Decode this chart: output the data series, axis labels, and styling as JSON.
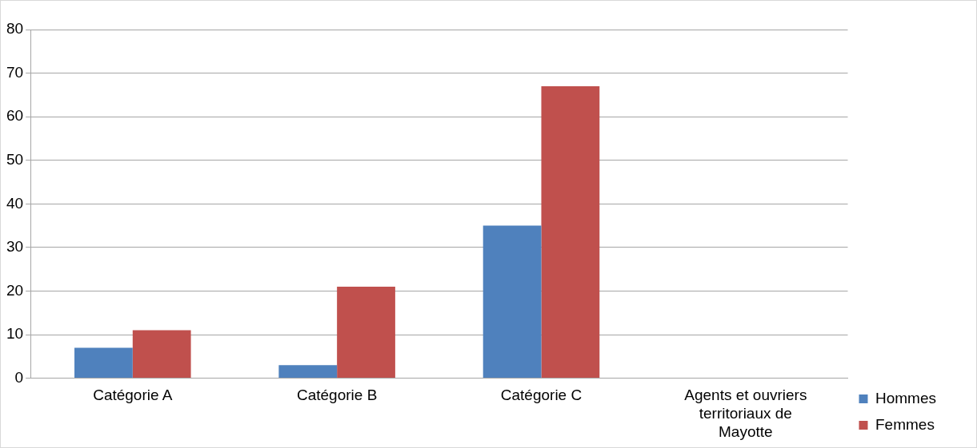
{
  "chart_data": {
    "type": "bar",
    "categories": [
      "Catégorie A",
      "Catégorie B",
      "Catégorie C",
      "Agents et ouvriers territoriaux de Mayotte"
    ],
    "series": [
      {
        "name": "Hommes",
        "color": "#4f81bd",
        "values": [
          7,
          3,
          35,
          0
        ]
      },
      {
        "name": "Femmes",
        "color": "#c0504d",
        "values": [
          11,
          21,
          67,
          0
        ]
      }
    ],
    "ylim": [
      0,
      80
    ],
    "yticks": [
      0,
      10,
      20,
      30,
      40,
      50,
      60,
      70,
      80
    ],
    "grid": "y",
    "legend": "right"
  }
}
